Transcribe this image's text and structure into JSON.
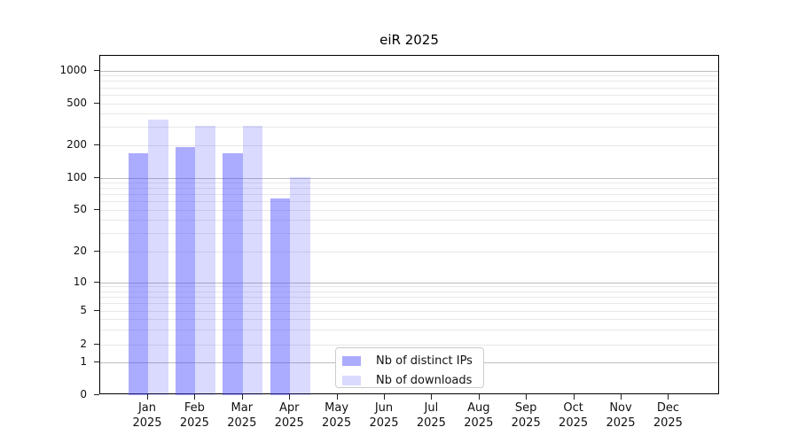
{
  "chart_data": {
    "type": "bar",
    "title": "eiR 2025",
    "categories": [
      "Jan 2025",
      "Feb 2025",
      "Mar 2025",
      "Apr 2025",
      "May 2025",
      "Jun 2025",
      "Jul 2025",
      "Aug 2025",
      "Sep 2025",
      "Oct 2025",
      "Nov 2025",
      "Dec 2025"
    ],
    "series": [
      {
        "name": "Nb of distinct IPs",
        "color": "#4444ff",
        "alpha": 0.45,
        "perceived_color": "#a9a9f8",
        "values": [
          170,
          193,
          170,
          64,
          null,
          null,
          null,
          null,
          null,
          null,
          null,
          null
        ]
      },
      {
        "name": "Nb of downloads",
        "color": "#4444ff",
        "alpha": 0.2,
        "perceived_color": "#d9d9f9",
        "values": [
          350,
          310,
          310,
          102,
          null,
          null,
          null,
          null,
          null,
          null,
          null,
          null
        ]
      }
    ],
    "yscale": "symlog",
    "yticks": [
      0,
      1,
      2,
      5,
      10,
      20,
      50,
      100,
      200,
      500,
      1000
    ],
    "ylim": [
      0,
      1400
    ],
    "xlabel": "",
    "ylabel": "",
    "grid": "horizontal",
    "legend_position": "lower center inside plot"
  }
}
